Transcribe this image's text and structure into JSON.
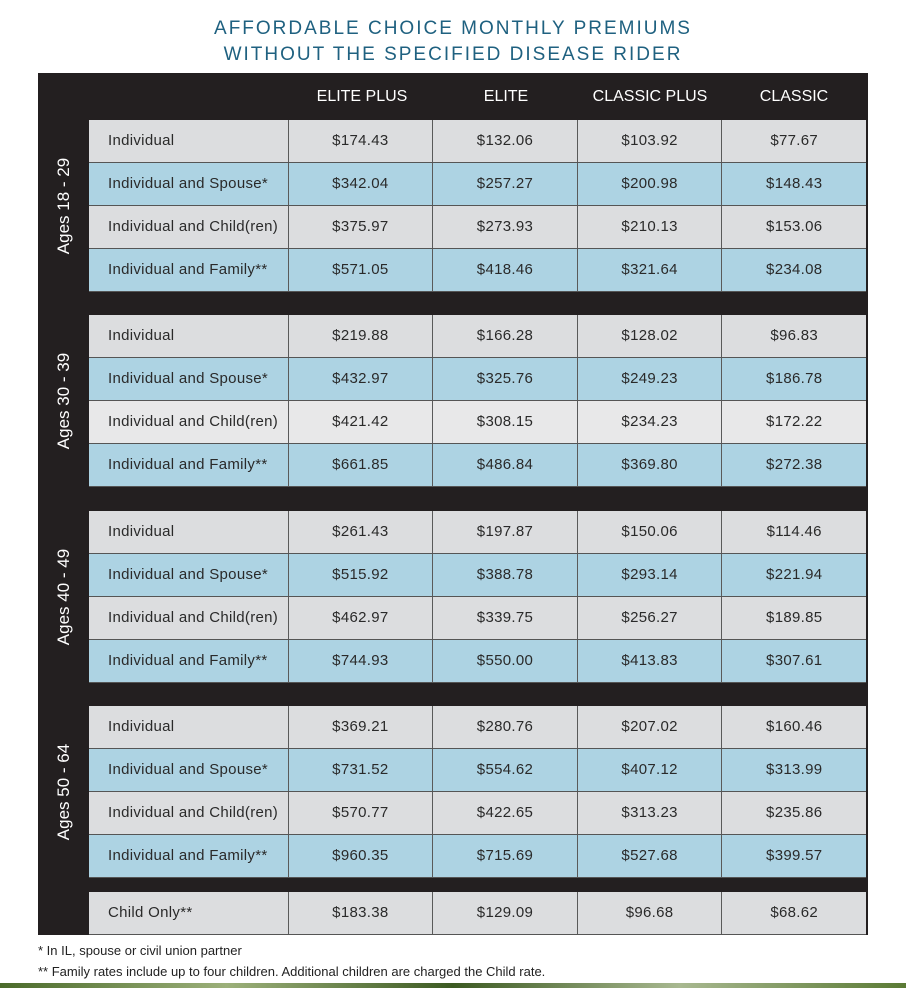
{
  "title": {
    "line1": "AFFORDABLE CHOICE MONTHLY PREMIUMS",
    "line2": "WITHOUT THE SPECIFIED DISEASE RIDER"
  },
  "columns": [
    "ELITE PLUS",
    "ELITE",
    "CLASSIC PLUS",
    "CLASSIC"
  ],
  "groups": [
    {
      "age": "Ages 18 - 29",
      "rows": [
        {
          "label": "Individual",
          "values": [
            "$174.43",
            "$132.06",
            "$103.92",
            "$77.67"
          ]
        },
        {
          "label": "Individual and Spouse*",
          "values": [
            "$342.04",
            "$257.27",
            "$200.98",
            "$148.43"
          ]
        },
        {
          "label": "Individual and Child(ren)",
          "values": [
            "$375.97",
            "$273.93",
            "$210.13",
            "$153.06"
          ]
        },
        {
          "label": "Individual and Family**",
          "values": [
            "$571.05",
            "$418.46",
            "$321.64",
            "$234.08"
          ]
        }
      ]
    },
    {
      "age": "Ages 30 - 39",
      "rows": [
        {
          "label": "Individual",
          "values": [
            "$219.88",
            "$166.28",
            "$128.02",
            "$96.83"
          ]
        },
        {
          "label": "Individual and Spouse*",
          "values": [
            "$432.97",
            "$325.76",
            "$249.23",
            "$186.78"
          ]
        },
        {
          "label": "Individual and Child(ren)",
          "values": [
            "$421.42",
            "$308.15",
            "$234.23",
            "$172.22"
          ]
        },
        {
          "label": "Individual and Family**",
          "values": [
            "$661.85",
            "$486.84",
            "$369.80",
            "$272.38"
          ]
        }
      ]
    },
    {
      "age": "Ages 40 - 49",
      "rows": [
        {
          "label": "Individual",
          "values": [
            "$261.43",
            "$197.87",
            "$150.06",
            "$114.46"
          ]
        },
        {
          "label": "Individual and Spouse*",
          "values": [
            "$515.92",
            "$388.78",
            "$293.14",
            "$221.94"
          ]
        },
        {
          "label": "Individual and Child(ren)",
          "values": [
            "$462.97",
            "$339.75",
            "$256.27",
            "$189.85"
          ]
        },
        {
          "label": "Individual and Family**",
          "values": [
            "$744.93",
            "$550.00",
            "$413.83",
            "$307.61"
          ]
        }
      ]
    },
    {
      "age": "Ages 50 - 64",
      "rows": [
        {
          "label": "Individual",
          "values": [
            "$369.21",
            "$280.76",
            "$207.02",
            "$160.46"
          ]
        },
        {
          "label": "Individual and Spouse*",
          "values": [
            "$731.52",
            "$554.62",
            "$407.12",
            "$313.99"
          ]
        },
        {
          "label": "Individual and Child(ren)",
          "values": [
            "$570.77",
            "$422.65",
            "$313.23",
            "$235.86"
          ]
        },
        {
          "label": "Individual and Family**",
          "values": [
            "$960.35",
            "$715.69",
            "$527.68",
            "$399.57"
          ]
        }
      ]
    }
  ],
  "child_only": {
    "label": "Child Only**",
    "values": [
      "$183.38",
      "$129.09",
      "$96.68",
      "$68.62"
    ]
  },
  "footnotes": [
    "* In IL, spouse or civil union partner",
    "** Family rates include up to four children. Additional children are charged the Child rate."
  ]
}
